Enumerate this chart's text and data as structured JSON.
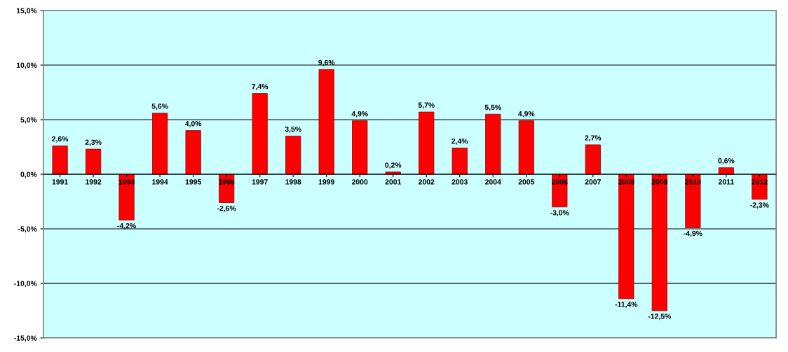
{
  "chart_data": {
    "type": "bar",
    "categories": [
      "1991",
      "1992",
      "1993",
      "1994",
      "1995",
      "1996",
      "1997",
      "1998",
      "1999",
      "2000",
      "2001",
      "2002",
      "2003",
      "2004",
      "2005",
      "2006",
      "2007",
      "2008",
      "2009",
      "2010",
      "2011",
      "2012"
    ],
    "values": [
      2.6,
      2.3,
      -4.2,
      5.6,
      4.0,
      -2.6,
      7.4,
      3.5,
      9.6,
      4.9,
      0.2,
      5.7,
      2.4,
      5.5,
      4.9,
      -3.0,
      2.7,
      -11.4,
      -12.5,
      -4.9,
      0.6,
      -2.3
    ],
    "value_labels": [
      "2,6%",
      "2,3%",
      "-4,2%",
      "5,6%",
      "4,0%",
      "-2,6%",
      "7,4%",
      "3,5%",
      "9,6%",
      "4,9%",
      "0,2%",
      "5,7%",
      "2,4%",
      "5,5%",
      "4,9%",
      "-3,0%",
      "2,7%",
      "-11,4%",
      "-12,5%",
      "-4,9%",
      "0,6%",
      "-2,3%"
    ],
    "color": "#ff0000",
    "ylim": [
      -15,
      15
    ],
    "yticks": [
      {
        "value": -15,
        "label": "-15,0%"
      },
      {
        "value": -10,
        "label": "-10,0%"
      },
      {
        "value": -5,
        "label": "-5,0%"
      },
      {
        "value": 0,
        "label": "0,0%"
      },
      {
        "value": 5,
        "label": "5,0%"
      },
      {
        "value": 10,
        "label": "10,0%"
      },
      {
        "value": 15,
        "label": "15,0%"
      }
    ],
    "grid": "y",
    "legend": false
  }
}
